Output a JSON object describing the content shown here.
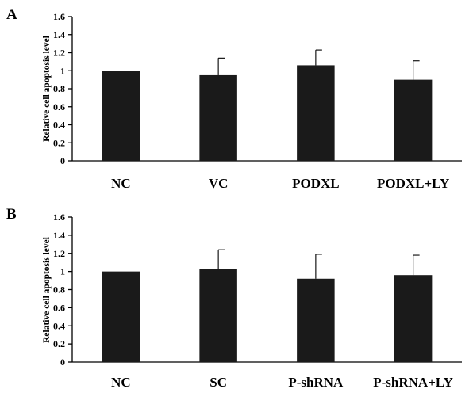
{
  "chart_data": [
    {
      "type": "bar",
      "panel": "A",
      "ylabel": "Relative cell apoptosis level",
      "ylim": [
        0,
        1.6
      ],
      "yticks": [
        "0",
        "0.2",
        "0.4",
        "0.6",
        "0.8",
        "1",
        "1.2",
        "1.4",
        "1.6"
      ],
      "categories": [
        "NC",
        "VC",
        "PODXL",
        "PODXL+LY"
      ],
      "values": [
        1.0,
        0.95,
        1.06,
        0.9
      ],
      "errors": [
        0,
        0.19,
        0.17,
        0.21
      ],
      "bar_color": "#1a1a1a"
    },
    {
      "type": "bar",
      "panel": "B",
      "ylabel": "Relative cell apoptosis level",
      "ylim": [
        0,
        1.6
      ],
      "yticks": [
        "0",
        "0.2",
        "0.4",
        "0.6",
        "0.8",
        "1",
        "1.2",
        "1.4",
        "1.6"
      ],
      "categories": [
        "NC",
        "SC",
        "P-shRNA",
        "P-shRNA+LY"
      ],
      "values": [
        1.0,
        1.03,
        0.92,
        0.96
      ],
      "errors": [
        0,
        0.21,
        0.27,
        0.22
      ],
      "bar_color": "#1a1a1a"
    }
  ]
}
